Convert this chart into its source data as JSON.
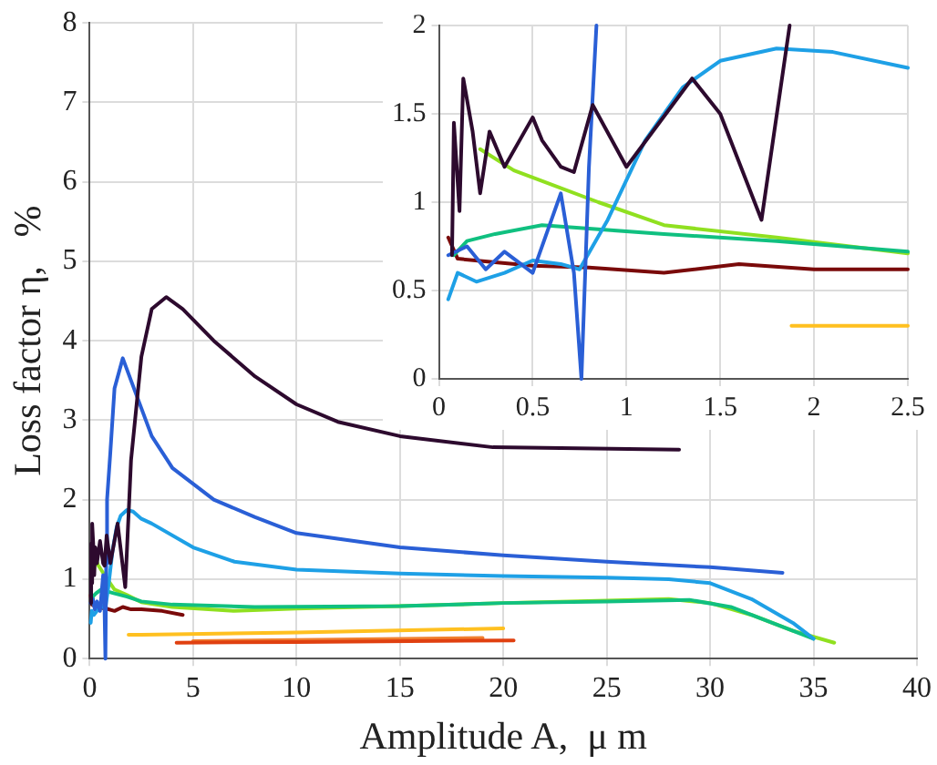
{
  "chart_data": [
    {
      "type": "line",
      "xlabel": "Amplitude A,  μ m",
      "ylabel": "Loss factor η,   %",
      "xlim": [
        0,
        40
      ],
      "xticks": [
        0,
        5,
        10,
        15,
        20,
        25,
        30,
        35,
        40
      ],
      "ylim": [
        0,
        8
      ],
      "yticks": [
        0,
        1,
        2,
        3,
        4,
        5,
        6,
        7,
        8
      ],
      "grid": true,
      "legend": false,
      "marker": "none",
      "line_style": "solid",
      "series": [
        {
          "color": "#2d0a2e",
          "x": [
            0.07,
            0.08,
            0.11,
            0.13,
            0.18,
            0.22,
            0.27,
            0.35,
            0.5,
            0.65,
            0.72,
            0.82,
            1.0,
            1.35,
            1.72,
            2.0,
            2.5,
            3,
            3.7,
            4.5,
            6,
            8,
            10,
            12,
            15,
            19.5,
            28.5
          ],
          "values": [
            0.7,
            1.45,
            0.95,
            1.7,
            1.4,
            1.05,
            1.4,
            1.2,
            1.48,
            1.2,
            1.17,
            1.55,
            1.2,
            1.7,
            0.9,
            2.5,
            3.8,
            4.4,
            4.55,
            4.4,
            4.0,
            3.55,
            3.2,
            2.98,
            2.8,
            2.66,
            2.63
          ]
        },
        {
          "color": "#2a5fd6",
          "x": [
            0.05,
            0.15,
            0.25,
            0.35,
            0.5,
            0.65,
            0.72,
            0.76,
            0.8,
            0.84,
            1.0,
            1.2,
            1.6,
            2,
            3,
            4,
            6,
            8,
            10,
            15,
            20,
            25,
            30,
            33.5
          ],
          "values": [
            0.7,
            0.75,
            0.62,
            0.72,
            0.6,
            1.05,
            0.6,
            0,
            1.2,
            2,
            2.6,
            3.4,
            3.78,
            3.5,
            2.8,
            2.4,
            2.0,
            1.78,
            1.58,
            1.4,
            1.3,
            1.22,
            1.15,
            1.08
          ]
        },
        {
          "color": "#1ea0e6",
          "x": [
            0.05,
            0.1,
            0.2,
            0.35,
            0.5,
            0.65,
            0.75,
            0.9,
            1.1,
            1.3,
            1.5,
            1.8,
            2.1,
            2.5,
            3,
            5,
            7,
            10,
            15,
            20,
            25,
            28,
            30,
            32,
            34,
            35
          ],
          "values": [
            0.45,
            0.6,
            0.55,
            0.6,
            0.67,
            0.65,
            0.62,
            0.9,
            1.35,
            1.65,
            1.8,
            1.87,
            1.85,
            1.76,
            1.7,
            1.4,
            1.22,
            1.12,
            1.07,
            1.04,
            1.02,
            1.0,
            0.95,
            0.75,
            0.45,
            0.25
          ]
        },
        {
          "color": "#10c080",
          "x": [
            0.08,
            0.15,
            0.3,
            0.55,
            0.8,
            1.2,
            1.8,
            2.5,
            4,
            8,
            15,
            20,
            25,
            29,
            31,
            33,
            35
          ],
          "values": [
            0.7,
            0.78,
            0.82,
            0.87,
            0.85,
            0.82,
            0.78,
            0.72,
            0.68,
            0.65,
            0.66,
            0.7,
            0.72,
            0.74,
            0.65,
            0.45,
            0.25
          ]
        },
        {
          "color": "#90e020",
          "x": [
            0.22,
            0.4,
            0.6,
            0.85,
            1.2,
            1.8,
            2.5,
            4,
            7,
            10,
            15,
            20,
            25,
            28,
            30,
            32,
            34,
            36
          ],
          "values": [
            1.3,
            1.18,
            1.1,
            1.0,
            0.87,
            0.8,
            0.71,
            0.65,
            0.6,
            0.63,
            0.66,
            0.7,
            0.73,
            0.75,
            0.7,
            0.55,
            0.35,
            0.2
          ]
        },
        {
          "color": "#7a0a0a",
          "x": [
            0.05,
            0.1,
            0.3,
            0.5,
            0.8,
            1.2,
            1.6,
            2.0,
            2.5,
            3.5,
            4.5
          ],
          "values": [
            0.8,
            0.68,
            0.66,
            0.64,
            0.63,
            0.6,
            0.65,
            0.62,
            0.62,
            0.6,
            0.55
          ]
        },
        {
          "color": "#ffc020",
          "x": [
            1.88,
            2.5,
            10,
            20
          ],
          "values": [
            0.3,
            0.3,
            0.33,
            0.38
          ]
        },
        {
          "color": "#e04010",
          "x": [
            4.2,
            10,
            20.5
          ],
          "values": [
            0.2,
            0.21,
            0.23
          ]
        },
        {
          "color": "#f08030",
          "x": [
            5,
            12,
            19
          ],
          "values": [
            0.22,
            0.24,
            0.26
          ]
        }
      ]
    },
    {
      "type": "line",
      "xlim": [
        0,
        2.5
      ],
      "xticks": [
        0,
        0.5,
        1,
        1.5,
        2,
        2.5
      ],
      "ylim": [
        0,
        2
      ],
      "yticks": [
        0,
        0.5,
        1,
        1.5,
        2
      ],
      "grid": true,
      "legend": false,
      "marker": "none",
      "line_style": "solid",
      "series": [
        {
          "color": "#2d0a2e",
          "x": [
            0.07,
            0.08,
            0.11,
            0.13,
            0.18,
            0.22,
            0.27,
            0.35,
            0.5,
            0.55,
            0.65,
            0.72,
            0.82,
            1.0,
            1.35,
            1.5,
            1.72,
            1.87
          ],
          "values": [
            0.7,
            1.45,
            0.95,
            1.7,
            1.4,
            1.05,
            1.4,
            1.2,
            1.48,
            1.35,
            1.2,
            1.17,
            1.55,
            1.2,
            1.7,
            1.5,
            0.9,
            2.0
          ]
        },
        {
          "color": "#2a5fd6",
          "x": [
            0.05,
            0.15,
            0.25,
            0.35,
            0.5,
            0.65,
            0.72,
            0.76,
            0.8,
            0.84
          ],
          "values": [
            0.7,
            0.75,
            0.62,
            0.72,
            0.6,
            1.05,
            0.6,
            0,
            1.2,
            2
          ]
        },
        {
          "color": "#1ea0e6",
          "x": [
            0.05,
            0.1,
            0.2,
            0.35,
            0.5,
            0.65,
            0.75,
            0.9,
            1.1,
            1.3,
            1.5,
            1.8,
            2.1,
            2.5
          ],
          "values": [
            0.45,
            0.6,
            0.55,
            0.6,
            0.67,
            0.65,
            0.62,
            0.9,
            1.35,
            1.65,
            1.8,
            1.87,
            1.85,
            1.76
          ]
        },
        {
          "color": "#10c080",
          "x": [
            0.08,
            0.15,
            0.3,
            0.55,
            0.8,
            1.2,
            1.8,
            2.5
          ],
          "values": [
            0.7,
            0.78,
            0.82,
            0.87,
            0.85,
            0.82,
            0.78,
            0.72
          ]
        },
        {
          "color": "#90e020",
          "x": [
            0.22,
            0.4,
            0.6,
            0.85,
            1.2,
            1.8,
            2.5
          ],
          "values": [
            1.3,
            1.18,
            1.1,
            1.0,
            0.87,
            0.8,
            0.71
          ]
        },
        {
          "color": "#7a0a0a",
          "x": [
            0.05,
            0.1,
            0.3,
            0.5,
            0.8,
            1.2,
            1.6,
            2.0,
            2.5
          ],
          "values": [
            0.8,
            0.68,
            0.66,
            0.64,
            0.63,
            0.6,
            0.65,
            0.62,
            0.62
          ]
        },
        {
          "color": "#ffc020",
          "x": [
            1.88,
            2.5
          ],
          "values": [
            0.3,
            0.3
          ]
        }
      ]
    }
  ]
}
